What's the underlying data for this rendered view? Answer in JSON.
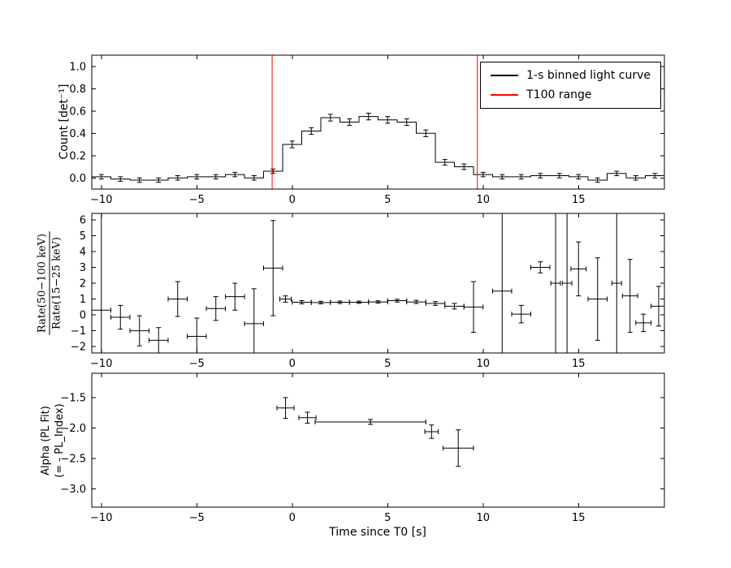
{
  "figure": {
    "background": "#ffffff",
    "xlabel": "Time since T0 [s]"
  },
  "chart_data": [
    {
      "type": "step",
      "name": "light-curve-panel",
      "ylabel": "Count [det⁻¹]",
      "xlim": [
        -10.5,
        19.5
      ],
      "ylim": [
        -0.1,
        1.1
      ],
      "xticks": [
        -10,
        -5,
        0,
        5,
        10,
        15
      ],
      "xticklabels": [
        "−10",
        "−5",
        "0",
        "5",
        "10",
        "15"
      ],
      "yticks": [
        0.0,
        0.2,
        0.4,
        0.6,
        0.8,
        1.0
      ],
      "yticklabels": [
        "0.0",
        "0.2",
        "0.4",
        "0.6",
        "0.8",
        "1.0"
      ],
      "line_color": "#000000",
      "bin_width": 1,
      "x": [
        -10,
        -9,
        -8,
        -7,
        -6,
        -5,
        -4,
        -3,
        -2,
        -1,
        0,
        1,
        2,
        3,
        4,
        5,
        6,
        7,
        8,
        9,
        10,
        11,
        12,
        13,
        14,
        15,
        16,
        17,
        18,
        19
      ],
      "y": [
        0.01,
        -0.01,
        -0.02,
        -0.02,
        0.0,
        0.01,
        0.01,
        0.03,
        0.0,
        0.06,
        0.3,
        0.42,
        0.54,
        0.5,
        0.55,
        0.52,
        0.5,
        0.4,
        0.14,
        0.1,
        0.03,
        0.01,
        0.01,
        0.02,
        0.02,
        0.01,
        -0.02,
        0.04,
        0.0,
        0.02
      ],
      "yerr": [
        0.02,
        0.02,
        0.02,
        0.02,
        0.02,
        0.02,
        0.02,
        0.02,
        0.02,
        0.02,
        0.03,
        0.03,
        0.03,
        0.03,
        0.03,
        0.03,
        0.03,
        0.03,
        0.025,
        0.025,
        0.02,
        0.02,
        0.02,
        0.02,
        0.02,
        0.02,
        0.02,
        0.02,
        0.02,
        0.02
      ],
      "vlines": {
        "x": [
          -1.05,
          9.7
        ],
        "color": "#ff0000"
      },
      "legend": [
        {
          "label": "1-s binned light curve",
          "color": "#000000"
        },
        {
          "label": "T100 range",
          "color": "#ff0000"
        }
      ]
    },
    {
      "type": "errorbar",
      "name": "hardness-ratio-panel",
      "ylabel_numerator": "Rate(50−100 keV)",
      "ylabel_denominator": "Rate(15−25 keV)",
      "xlim": [
        -10.5,
        19.5
      ],
      "ylim": [
        -2.4,
        6.4
      ],
      "xticks": [
        -10,
        -5,
        0,
        5,
        10,
        15
      ],
      "xticklabels": [
        "−10",
        "−5",
        "0",
        "5",
        "10",
        "15"
      ],
      "yticks": [
        -2,
        -1,
        0,
        1,
        2,
        3,
        4,
        5,
        6
      ],
      "yticklabels": [
        "−2",
        "−1",
        "0",
        "1",
        "2",
        "3",
        "4",
        "5",
        "6"
      ],
      "color": "#000000",
      "points": [
        [
          -10.0,
          0.3,
          0.5,
          9.0
        ],
        [
          -9.0,
          -0.15,
          0.5,
          0.75
        ],
        [
          -8.0,
          -1.0,
          0.5,
          0.95
        ],
        [
          -7.0,
          -1.6,
          0.5,
          0.8
        ],
        [
          -6.0,
          1.0,
          0.5,
          1.1
        ],
        [
          -5.0,
          -1.35,
          0.5,
          1.15
        ],
        [
          -4.0,
          0.4,
          0.5,
          0.75
        ],
        [
          -3.0,
          1.15,
          0.5,
          0.85
        ],
        [
          -2.0,
          -0.55,
          0.5,
          2.2
        ],
        [
          -1.0,
          2.95,
          0.5,
          3.0
        ],
        [
          -0.35,
          1.0,
          0.3,
          0.2
        ],
        [
          0.5,
          0.8,
          0.5,
          0.1
        ],
        [
          1.5,
          0.78,
          0.5,
          0.08
        ],
        [
          2.5,
          0.8,
          0.5,
          0.08
        ],
        [
          3.5,
          0.8,
          0.5,
          0.07
        ],
        [
          4.5,
          0.82,
          0.5,
          0.07
        ],
        [
          5.5,
          0.9,
          0.5,
          0.09
        ],
        [
          6.5,
          0.82,
          0.5,
          0.1
        ],
        [
          7.5,
          0.72,
          0.5,
          0.12
        ],
        [
          8.5,
          0.55,
          0.5,
          0.18
        ],
        [
          9.5,
          0.5,
          0.5,
          1.6
        ],
        [
          11.0,
          1.5,
          0.5,
          9.0
        ],
        [
          12.0,
          0.05,
          0.5,
          0.55
        ],
        [
          13.0,
          3.0,
          0.5,
          0.35
        ],
        [
          13.8,
          2.0,
          0.25,
          9.0
        ],
        [
          14.4,
          2.0,
          0.25,
          9.0
        ],
        [
          15.0,
          2.9,
          0.4,
          1.7
        ],
        [
          16.0,
          1.0,
          0.5,
          2.6
        ],
        [
          17.0,
          2.0,
          0.25,
          9.0
        ],
        [
          17.7,
          1.2,
          0.4,
          2.3
        ],
        [
          18.4,
          -0.5,
          0.4,
          0.55
        ],
        [
          19.2,
          0.55,
          0.4,
          1.25
        ]
      ]
    },
    {
      "type": "errorbar",
      "name": "alpha-panel",
      "ylabel_line1": "Alpha (PL Fit)",
      "ylabel_line2": "(= - PL_Index)",
      "xlim": [
        -10.5,
        19.5
      ],
      "ylim": [
        -3.3,
        -1.1
      ],
      "xticks": [
        -10,
        -5,
        0,
        5,
        10,
        15
      ],
      "xticklabels": [
        "−10",
        "−5",
        "0",
        "5",
        "10",
        "15"
      ],
      "yticks": [
        -3.0,
        -2.5,
        -2.0,
        -1.5
      ],
      "yticklabels": [
        "−3.0",
        "−2.5",
        "−2.0",
        "−1.5"
      ],
      "color": "#000000",
      "points": [
        [
          -0.35,
          -1.67,
          0.45,
          0.17
        ],
        [
          0.8,
          -1.83,
          0.45,
          0.09
        ],
        [
          4.1,
          -1.9,
          2.9,
          0.04
        ],
        [
          7.3,
          -2.06,
          0.35,
          0.11
        ],
        [
          8.7,
          -2.33,
          0.8,
          0.3
        ]
      ]
    }
  ]
}
